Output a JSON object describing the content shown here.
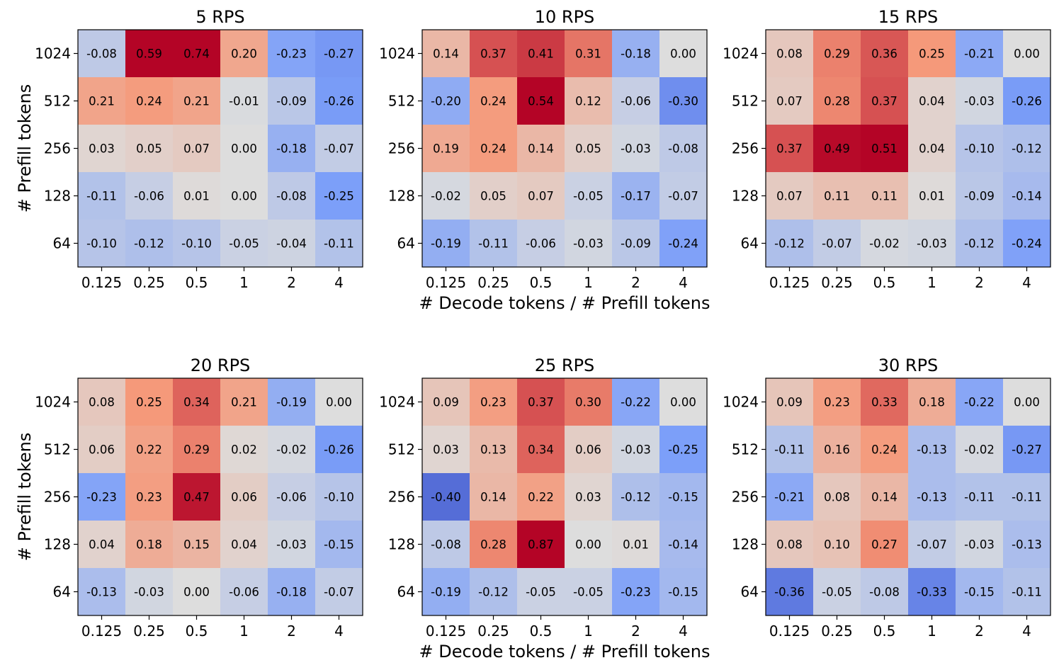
{
  "chart_data": {
    "type": "heatmap",
    "xlabel": "# Decode tokens / # Prefill tokens",
    "ylabel": "# Prefill tokens",
    "x_categories": [
      "0.125",
      "0.25",
      "0.5",
      "1",
      "2",
      "4"
    ],
    "y_categories": [
      "1024",
      "512",
      "256",
      "128",
      "64"
    ],
    "color_range": [
      -0.5,
      0.5
    ],
    "colormap": "coolwarm",
    "panels": [
      {
        "title": "5 RPS",
        "values": [
          [
            "-0.08",
            "0.59",
            "0.74",
            "0.20",
            "-0.23",
            "-0.27"
          ],
          [
            "0.21",
            "0.24",
            "0.21",
            "-0.01",
            "-0.09",
            "-0.26"
          ],
          [
            "0.03",
            "0.05",
            "0.07",
            "0.00",
            "-0.18",
            "-0.07"
          ],
          [
            "-0.11",
            "-0.06",
            "0.01",
            "0.00",
            "-0.08",
            "-0.25"
          ],
          [
            "-0.10",
            "-0.12",
            "-0.10",
            "-0.05",
            "-0.04",
            "-0.11"
          ]
        ]
      },
      {
        "title": "10 RPS",
        "values": [
          [
            "0.14",
            "0.37",
            "0.41",
            "0.31",
            "-0.18",
            "0.00"
          ],
          [
            "-0.20",
            "0.24",
            "0.54",
            "0.12",
            "-0.06",
            "-0.30"
          ],
          [
            "0.19",
            "0.24",
            "0.14",
            "0.05",
            "-0.03",
            "-0.08"
          ],
          [
            "-0.02",
            "0.05",
            "0.07",
            "-0.05",
            "-0.17",
            "-0.07"
          ],
          [
            "-0.19",
            "-0.11",
            "-0.06",
            "-0.03",
            "-0.09",
            "-0.24"
          ]
        ]
      },
      {
        "title": "15 RPS",
        "values": [
          [
            "0.08",
            "0.29",
            "0.36",
            "0.25",
            "-0.21",
            "0.00"
          ],
          [
            "0.07",
            "0.28",
            "0.37",
            "0.04",
            "-0.03",
            "-0.26"
          ],
          [
            "0.37",
            "0.49",
            "0.51",
            "0.04",
            "-0.10",
            "-0.12"
          ],
          [
            "0.07",
            "0.11",
            "0.11",
            "0.01",
            "-0.09",
            "-0.14"
          ],
          [
            "-0.12",
            "-0.07",
            "-0.02",
            "-0.03",
            "-0.12",
            "-0.24"
          ]
        ]
      },
      {
        "title": "20 RPS",
        "values": [
          [
            "0.08",
            "0.25",
            "0.34",
            "0.21",
            "-0.19",
            "0.00"
          ],
          [
            "0.06",
            "0.22",
            "0.29",
            "0.02",
            "-0.02",
            "-0.26"
          ],
          [
            "-0.23",
            "0.23",
            "0.47",
            "0.06",
            "-0.06",
            "-0.10"
          ],
          [
            "0.04",
            "0.18",
            "0.15",
            "0.04",
            "-0.03",
            "-0.15"
          ],
          [
            "-0.13",
            "-0.03",
            "0.00",
            "-0.06",
            "-0.18",
            "-0.07"
          ]
        ]
      },
      {
        "title": "25 RPS",
        "values": [
          [
            "0.09",
            "0.23",
            "0.37",
            "0.30",
            "-0.22",
            "0.00"
          ],
          [
            "0.03",
            "0.13",
            "0.34",
            "0.06",
            "-0.03",
            "-0.25"
          ],
          [
            "-0.40",
            "0.14",
            "0.22",
            "0.03",
            "-0.12",
            "-0.15"
          ],
          [
            "-0.08",
            "0.28",
            "0.87",
            "0.00",
            "0.01",
            "-0.14"
          ],
          [
            "-0.19",
            "-0.12",
            "-0.05",
            "-0.05",
            "-0.23",
            "-0.15"
          ]
        ]
      },
      {
        "title": "30 RPS",
        "values": [
          [
            "0.09",
            "0.23",
            "0.33",
            "0.18",
            "-0.22",
            "0.00"
          ],
          [
            "-0.11",
            "0.16",
            "0.24",
            "-0.13",
            "-0.02",
            "-0.27"
          ],
          [
            "-0.21",
            "0.08",
            "0.14",
            "-0.13",
            "-0.11",
            "-0.11"
          ],
          [
            "0.08",
            "0.10",
            "0.27",
            "-0.07",
            "-0.03",
            "-0.13"
          ],
          [
            "-0.36",
            "-0.05",
            "-0.08",
            "-0.33",
            "-0.15",
            "-0.11"
          ]
        ]
      }
    ]
  }
}
